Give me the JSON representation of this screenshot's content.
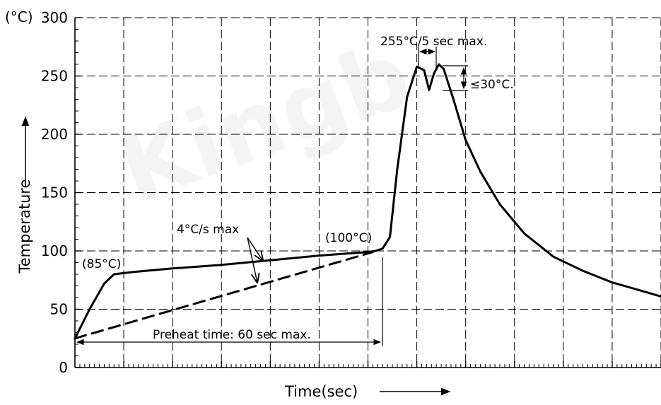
{
  "chart_data": {
    "type": "line",
    "unit_label": "(°C)",
    "xlabel": "Time(sec)",
    "ylabel": "Temperature",
    "ylim": [
      0,
      300
    ],
    "y_ticks": [
      "0",
      "50",
      "100",
      "150",
      "200",
      "250",
      "300"
    ],
    "xlim": [
      0,
      12
    ],
    "grid": true,
    "series": [
      {
        "style": "solid",
        "x": [
          0,
          0.3,
          0.6,
          0.8,
          1.2,
          2,
          3,
          4,
          5,
          6,
          6.15,
          6.3,
          6.45,
          6.6,
          6.8,
          7.0,
          7.15,
          7.25,
          7.35,
          7.45,
          7.55,
          7.75,
          8.0,
          8.3,
          8.7,
          9.2,
          9.8,
          10.4,
          11.0,
          11.5,
          12.0
        ],
        "y": [
          25,
          50,
          72,
          80,
          82,
          85,
          88,
          92,
          96,
          99,
          100,
          102,
          112,
          170,
          232,
          258,
          255,
          238,
          252,
          260,
          256,
          230,
          195,
          168,
          140,
          115,
          95,
          83,
          73,
          67,
          61
        ]
      },
      {
        "style": "dashed",
        "x": [
          0,
          6.1
        ],
        "y": [
          25,
          99
        ]
      }
    ],
    "annotations": {
      "label_85": "(85°C)",
      "label_100": "(100°C)",
      "slope": "4°C/s max",
      "peak": "255°C/5 sec max.",
      "dip": "≤30°C.",
      "preheat": "Preheat time: 60 sec max."
    },
    "watermark": "Kingb"
  }
}
